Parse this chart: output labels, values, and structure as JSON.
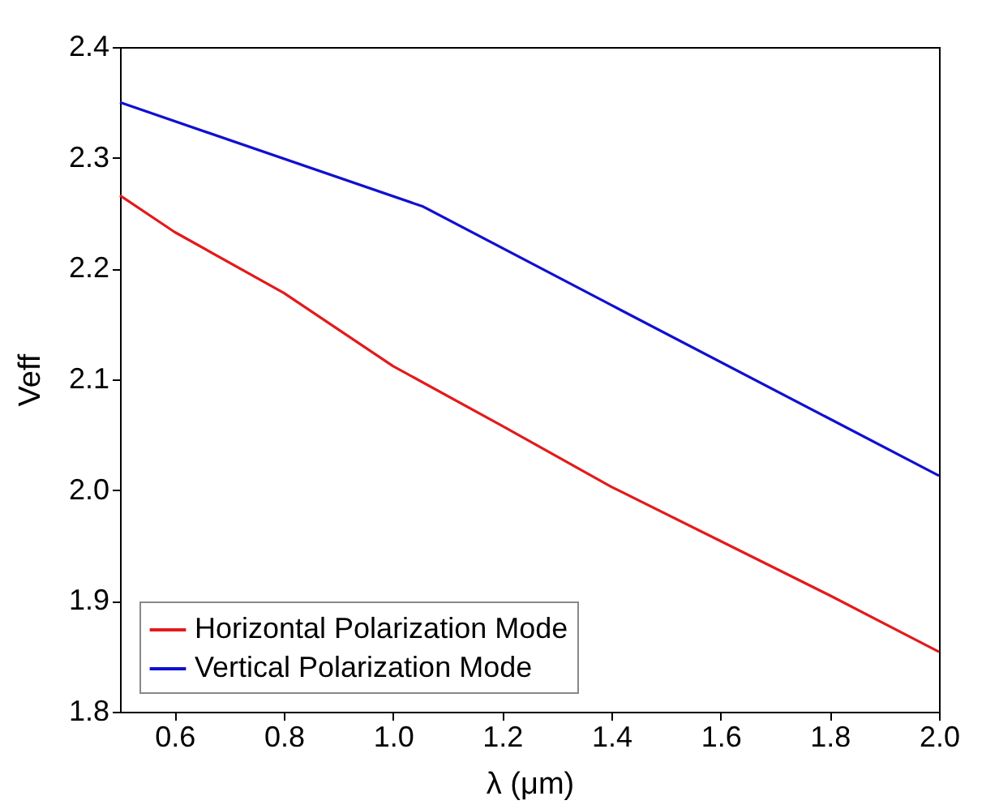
{
  "chart_data": {
    "type": "line",
    "xlabel": "λ (μm)",
    "ylabel": "Veff",
    "series": [
      {
        "name": "Horizontal Polarization Mode",
        "color": "#e31a1c",
        "x": [
          0.5,
          0.6,
          0.8,
          1.0,
          1.2,
          1.4,
          1.6,
          1.8,
          2.0
        ],
        "values": [
          2.266,
          2.233,
          2.178,
          2.112,
          2.058,
          2.003,
          1.954,
          1.905,
          1.854
        ]
      },
      {
        "name": "Vertical Polarization Mode",
        "color": "#1010d0",
        "x": [
          0.5,
          1.055,
          1.4,
          2.0
        ],
        "values": [
          2.35,
          2.256,
          2.167,
          2.013
        ]
      }
    ],
    "xlim": [
      0.5,
      2.0
    ],
    "xticks": [
      0.6,
      0.8,
      {
        "value": 1,
        "label": "1.0"
      },
      1.2,
      1.4,
      1.6,
      1.8,
      {
        "value": 2,
        "label": "2.0"
      }
    ],
    "ylim": [
      1.8,
      2.4
    ],
    "yticks": [
      1.8,
      1.9,
      {
        "value": 2,
        "label": "2.0"
      },
      2.1,
      2.2,
      2.3,
      2.4
    ],
    "grid": false,
    "legend": "bottom left",
    "line_style": "solid",
    "marker": "none"
  }
}
